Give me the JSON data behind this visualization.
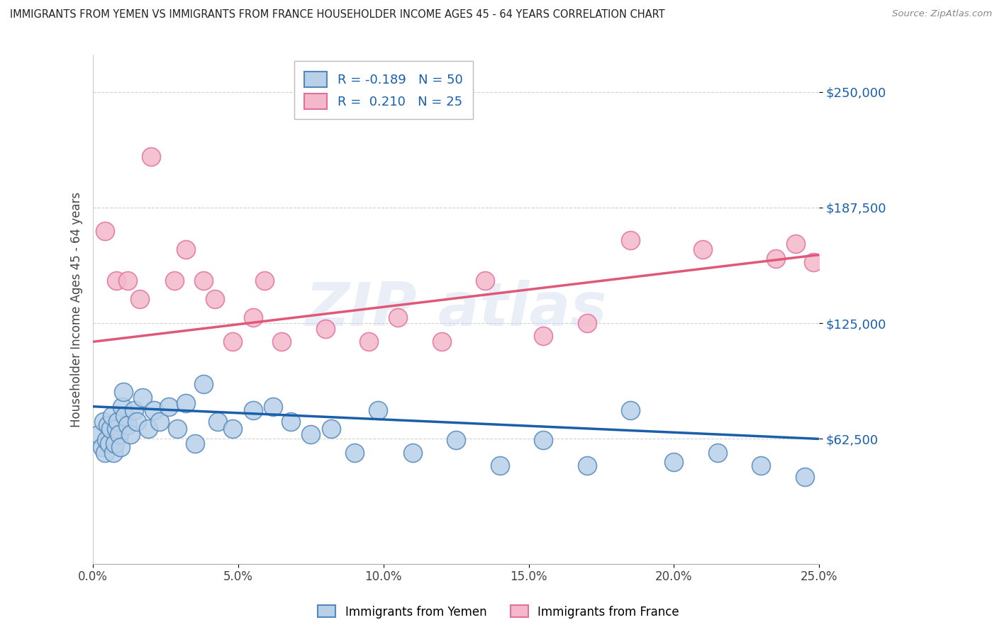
{
  "title": "IMMIGRANTS FROM YEMEN VS IMMIGRANTS FROM FRANCE HOUSEHOLDER INCOME AGES 45 - 64 YEARS CORRELATION CHART",
  "source": "Source: ZipAtlas.com",
  "ylabel": "Householder Income Ages 45 - 64 years",
  "xlim": [
    0.0,
    25.0
  ],
  "ylim": [
    -5000,
    270000
  ],
  "yticks": [
    62500,
    125000,
    187500,
    250000
  ],
  "ytick_labels": [
    "$62,500",
    "$125,000",
    "$187,500",
    "$250,000"
  ],
  "xticks": [
    0,
    5,
    10,
    15,
    20,
    25
  ],
  "xtick_labels": [
    "0.0%",
    "5.0%",
    "10.0%",
    "15.0%",
    "20.0%",
    "25.0%"
  ],
  "yemen_color": "#b8d0e8",
  "france_color": "#f4b8ca",
  "yemen_edge": "#5588bb",
  "france_edge": "#e070a0",
  "trend_blue": "#1a5faa",
  "trend_pink": "#e05878",
  "label_blue": "#1a5faa",
  "R_yemen": -0.189,
  "N_yemen": 50,
  "R_france": 0.21,
  "N_france": 25,
  "legend_label_yemen": "Immigrants from Yemen",
  "legend_label_france": "Immigrants from France",
  "yemen_x": [
    0.2,
    0.3,
    0.35,
    0.4,
    0.45,
    0.5,
    0.55,
    0.6,
    0.65,
    0.7,
    0.75,
    0.8,
    0.85,
    0.9,
    0.95,
    1.0,
    1.05,
    1.1,
    1.2,
    1.3,
    1.4,
    1.5,
    1.7,
    1.9,
    2.1,
    2.3,
    2.6,
    2.9,
    3.2,
    3.5,
    3.8,
    4.3,
    4.8,
    5.5,
    6.2,
    6.8,
    7.5,
    8.2,
    9.0,
    9.8,
    11.0,
    12.5,
    14.0,
    15.5,
    17.0,
    18.5,
    20.0,
    21.5,
    23.0,
    24.5
  ],
  "yemen_y": [
    65000,
    58000,
    72000,
    55000,
    62000,
    70000,
    60000,
    68000,
    75000,
    55000,
    60000,
    68000,
    72000,
    65000,
    58000,
    80000,
    88000,
    75000,
    70000,
    65000,
    78000,
    72000,
    85000,
    68000,
    78000,
    72000,
    80000,
    68000,
    82000,
    60000,
    92000,
    72000,
    68000,
    78000,
    80000,
    72000,
    65000,
    68000,
    55000,
    78000,
    55000,
    62000,
    48000,
    62000,
    48000,
    78000,
    50000,
    55000,
    48000,
    42000
  ],
  "france_x": [
    0.4,
    0.8,
    1.2,
    1.6,
    2.0,
    2.8,
    3.2,
    3.8,
    4.2,
    4.8,
    5.5,
    5.9,
    6.5,
    8.0,
    9.5,
    10.5,
    12.0,
    13.5,
    15.5,
    17.0,
    18.5,
    21.0,
    23.5,
    24.2,
    24.8
  ],
  "france_y": [
    175000,
    148000,
    148000,
    138000,
    215000,
    148000,
    165000,
    148000,
    138000,
    115000,
    128000,
    148000,
    115000,
    122000,
    115000,
    128000,
    115000,
    148000,
    118000,
    125000,
    170000,
    165000,
    160000,
    168000,
    158000
  ]
}
